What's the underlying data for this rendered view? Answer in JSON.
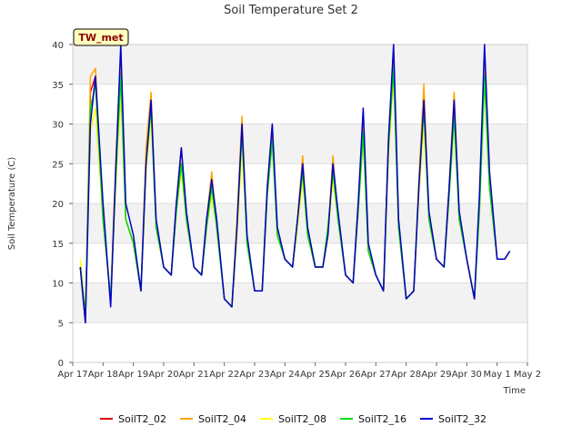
{
  "chart_data": {
    "type": "line",
    "title": "Soil Temperature Set 2",
    "xlabel": "Time",
    "ylabel": "Soil Temperature (C)",
    "xlim": [
      "Apr 17",
      "May 2"
    ],
    "ylim": [
      0,
      40
    ],
    "yticks": [
      0,
      5,
      10,
      15,
      20,
      25,
      30,
      35,
      40
    ],
    "xtick_labels": [
      "Apr 17",
      "Apr 18",
      "Apr 19",
      "Apr 20",
      "Apr 21",
      "Apr 22",
      "Apr 23",
      "Apr 24",
      "Apr 25",
      "Apr 26",
      "Apr 27",
      "Apr 28",
      "Apr 29",
      "Apr 30",
      "May 1",
      "May 2"
    ],
    "grid": "horizontal bands",
    "legend_position": "bottom",
    "annotation": "TW_met",
    "series": [
      {
        "name": "SoilT2_02",
        "color": "#dd0000",
        "x": [
          "Apr 17 06:00",
          "Apr 17 10:00",
          "Apr 17 14:00",
          "Apr 17 18:00",
          "Apr 18 00:00",
          "Apr 18 06:00",
          "Apr 18 10:00",
          "Apr 18 14:00",
          "Apr 18 18:00",
          "Apr 19 00:00",
          "Apr 19 06:00",
          "Apr 19 10:00",
          "Apr 19 14:00",
          "Apr 19 18:00",
          "Apr 20 00:00",
          "Apr 20 06:00",
          "Apr 20 10:00",
          "Apr 20 14:00",
          "Apr 20 18:00",
          "Apr 21 00:00",
          "Apr 21 06:00",
          "Apr 21 10:00",
          "Apr 21 14:00",
          "Apr 21 18:00",
          "Apr 22 00:00",
          "Apr 22 06:00",
          "Apr 22 10:00",
          "Apr 22 14:00",
          "Apr 22 18:00",
          "Apr 23 00:00",
          "Apr 23 06:00",
          "Apr 23 10:00",
          "Apr 23 14:00",
          "Apr 23 18:00",
          "Apr 24 00:00",
          "Apr 24 06:00",
          "Apr 24 10:00",
          "Apr 24 14:00",
          "Apr 24 18:00",
          "Apr 25 00:00",
          "Apr 25 06:00",
          "Apr 25 10:00",
          "Apr 25 14:00",
          "Apr 25 18:00",
          "Apr 26 00:00",
          "Apr 26 06:00",
          "Apr 26 10:00",
          "Apr 26 14:00",
          "Apr 26 18:00",
          "Apr 27 00:00",
          "Apr 27 06:00",
          "Apr 27 10:00",
          "Apr 27 14:00",
          "Apr 27 18:00",
          "Apr 28 00:00",
          "Apr 28 06:00",
          "Apr 28 10:00",
          "Apr 28 14:00",
          "Apr 28 18:00",
          "Apr 29 00:00",
          "Apr 29 06:00",
          "Apr 29 10:00",
          "Apr 29 14:00",
          "Apr 29 18:00",
          "Apr 30 00:00",
          "Apr 30 06:00",
          "Apr 30 10:00",
          "Apr 30 14:00",
          "Apr 30 18:00",
          "May 1 00:00",
          "May 1 06:00",
          "May 1 10:00"
        ],
        "y": [
          12,
          5,
          34,
          36,
          18,
          8,
          24,
          38,
          18,
          15,
          9,
          26,
          32,
          17,
          12,
          11,
          20,
          27,
          18,
          12,
          11,
          18,
          23,
          17,
          8,
          7,
          17,
          30,
          15,
          9,
          9,
          22,
          29,
          16,
          13,
          12,
          18,
          25,
          16,
          12,
          12,
          16,
          25,
          18,
          11,
          10,
          20,
          30,
          14,
          11,
          9,
          28,
          39,
          17,
          8,
          9,
          22,
          34,
          18,
          13,
          12,
          22,
          33,
          18,
          13,
          8,
          20,
          38,
          22,
          13,
          13,
          14
        ]
      },
      {
        "name": "SoilT2_04",
        "color": "#ffa500",
        "x": [
          "Apr 17 06:00",
          "Apr 17 10:00",
          "Apr 17 14:00",
          "Apr 17 18:00",
          "Apr 18 00:00",
          "Apr 18 06:00",
          "Apr 18 10:00",
          "Apr 18 14:00",
          "Apr 18 18:00",
          "Apr 19 00:00",
          "Apr 19 06:00",
          "Apr 19 10:00",
          "Apr 19 14:00",
          "Apr 19 18:00",
          "Apr 20 00:00",
          "Apr 20 06:00",
          "Apr 20 10:00",
          "Apr 20 14:00",
          "Apr 20 18:00",
          "Apr 21 00:00",
          "Apr 21 06:00",
          "Apr 21 10:00",
          "Apr 21 14:00",
          "Apr 21 18:00",
          "Apr 22 00:00",
          "Apr 22 06:00",
          "Apr 22 10:00",
          "Apr 22 14:00",
          "Apr 22 18:00",
          "Apr 23 00:00",
          "Apr 23 06:00",
          "Apr 23 10:00",
          "Apr 23 14:00",
          "Apr 23 18:00",
          "Apr 24 00:00",
          "Apr 24 06:00",
          "Apr 24 10:00",
          "Apr 24 14:00",
          "Apr 24 18:00",
          "Apr 25 00:00",
          "Apr 25 06:00",
          "Apr 25 10:00",
          "Apr 25 14:00",
          "Apr 25 18:00",
          "Apr 26 00:00",
          "Apr 26 06:00",
          "Apr 26 10:00",
          "Apr 26 14:00",
          "Apr 26 18:00",
          "Apr 27 00:00",
          "Apr 27 06:00",
          "Apr 27 10:00",
          "Apr 27 14:00",
          "Apr 27 18:00",
          "Apr 28 00:00",
          "Apr 28 06:00",
          "Apr 28 10:00",
          "Apr 28 14:00",
          "Apr 28 18:00",
          "Apr 29 00:00",
          "Apr 29 06:00",
          "Apr 29 10:00",
          "Apr 29 14:00",
          "Apr 29 18:00",
          "Apr 30 00:00",
          "Apr 30 06:00",
          "Apr 30 10:00",
          "Apr 30 14:00",
          "Apr 30 18:00",
          "May 1 00:00",
          "May 1 06:00",
          "May 1 10:00"
        ],
        "y": [
          12,
          5,
          36,
          37,
          18,
          8,
          25,
          39,
          18,
          15,
          9,
          27,
          34,
          17,
          12,
          11,
          20,
          27,
          18,
          12,
          11,
          18,
          24,
          17,
          8,
          7,
          18,
          31,
          15,
          9,
          9,
          22,
          30,
          16,
          13,
          12,
          18,
          26,
          16,
          12,
          12,
          16,
          26,
          18,
          11,
          10,
          20,
          31,
          14,
          11,
          9,
          28,
          39,
          17,
          8,
          9,
          23,
          35,
          18,
          13,
          12,
          22,
          34,
          18,
          13,
          8,
          20,
          38,
          22,
          13,
          13,
          14
        ]
      },
      {
        "name": "SoilT2_08",
        "color": "#ffff00",
        "x": [
          "Apr 17 06:00",
          "Apr 17 10:00",
          "Apr 17 14:00",
          "Apr 17 18:00",
          "Apr 18 00:00",
          "Apr 18 06:00",
          "Apr 18 10:00",
          "Apr 18 14:00",
          "Apr 18 18:00",
          "Apr 19 00:00",
          "Apr 19 06:00",
          "Apr 19 10:00",
          "Apr 19 14:00",
          "Apr 19 18:00",
          "Apr 20 00:00",
          "Apr 20 06:00",
          "Apr 20 10:00",
          "Apr 20 14:00",
          "Apr 20 18:00",
          "Apr 21 00:00",
          "Apr 21 06:00",
          "Apr 21 10:00",
          "Apr 21 14:00",
          "Apr 21 18:00",
          "Apr 22 00:00",
          "Apr 22 06:00",
          "Apr 22 10:00",
          "Apr 22 14:00",
          "Apr 22 18:00",
          "Apr 23 00:00",
          "Apr 23 06:00",
          "Apr 23 10:00",
          "Apr 23 14:00",
          "Apr 23 18:00",
          "Apr 24 00:00",
          "Apr 24 06:00",
          "Apr 24 10:00",
          "Apr 24 14:00",
          "Apr 24 18:00",
          "Apr 25 00:00",
          "Apr 25 06:00",
          "Apr 25 10:00",
          "Apr 25 14:00",
          "Apr 25 18:00",
          "Apr 26 00:00",
          "Apr 26 06:00",
          "Apr 26 10:00",
          "Apr 26 14:00",
          "Apr 26 18:00",
          "Apr 27 00:00",
          "Apr 27 06:00",
          "Apr 27 10:00",
          "Apr 27 14:00",
          "Apr 27 18:00",
          "Apr 28 00:00",
          "Apr 28 06:00",
          "Apr 28 10:00",
          "Apr 28 14:00",
          "Apr 28 18:00",
          "Apr 29 00:00",
          "Apr 29 06:00",
          "Apr 29 10:00",
          "Apr 29 14:00",
          "Apr 29 18:00",
          "Apr 30 00:00",
          "Apr 30 06:00",
          "Apr 30 10:00",
          "Apr 30 14:00",
          "Apr 30 18:00",
          "May 1 00:00",
          "May 1 06:00",
          "May 1 10:00"
        ],
        "y": [
          13,
          6,
          29,
          32,
          18,
          8,
          22,
          34,
          18,
          15,
          9,
          24,
          31,
          17,
          12,
          11,
          19,
          24,
          18,
          12,
          11,
          17,
          21,
          17,
          8,
          7,
          16,
          27,
          15,
          9,
          9,
          21,
          28,
          16,
          13,
          12,
          17,
          23,
          16,
          12,
          12,
          16,
          23,
          18,
          11,
          10,
          19,
          28,
          14,
          11,
          9,
          26,
          36,
          17,
          8,
          9,
          21,
          30,
          18,
          13,
          12,
          21,
          30,
          18,
          13,
          8,
          19,
          35,
          22,
          13,
          13,
          14
        ]
      },
      {
        "name": "SoilT2_16",
        "color": "#00dd00",
        "x": [
          "Apr 17 06:00",
          "Apr 17 10:00",
          "Apr 17 14:00",
          "Apr 17 18:00",
          "Apr 18 00:00",
          "Apr 18 06:00",
          "Apr 18 10:00",
          "Apr 18 14:00",
          "Apr 18 18:00",
          "Apr 19 00:00",
          "Apr 19 06:00",
          "Apr 19 10:00",
          "Apr 19 14:00",
          "Apr 19 18:00",
          "Apr 20 00:00",
          "Apr 20 06:00",
          "Apr 20 10:00",
          "Apr 20 14:00",
          "Apr 20 18:00",
          "Apr 21 00:00",
          "Apr 21 06:00",
          "Apr 21 10:00",
          "Apr 21 14:00",
          "Apr 21 18:00",
          "Apr 22 00:00",
          "Apr 22 06:00",
          "Apr 22 10:00",
          "Apr 22 14:00",
          "Apr 22 18:00",
          "Apr 23 00:00",
          "Apr 23 06:00",
          "Apr 23 10:00",
          "Apr 23 14:00",
          "Apr 23 18:00",
          "Apr 24 00:00",
          "Apr 24 06:00",
          "Apr 24 10:00",
          "Apr 24 14:00",
          "Apr 24 18:00",
          "Apr 25 00:00",
          "Apr 25 06:00",
          "Apr 25 10:00",
          "Apr 25 14:00",
          "Apr 25 18:00",
          "Apr 26 00:00",
          "Apr 26 06:00",
          "Apr 26 10:00",
          "Apr 26 14:00",
          "Apr 26 18:00",
          "Apr 27 00:00",
          "Apr 27 06:00",
          "Apr 27 10:00",
          "Apr 27 14:00",
          "Apr 27 18:00",
          "Apr 28 00:00",
          "Apr 28 06:00",
          "Apr 28 10:00",
          "Apr 28 14:00",
          "Apr 28 18:00",
          "Apr 29 00:00",
          "Apr 29 06:00",
          "Apr 29 10:00",
          "Apr 29 14:00",
          "Apr 29 18:00",
          "Apr 30 00:00",
          "Apr 30 06:00",
          "Apr 30 10:00",
          "Apr 30 14:00",
          "Apr 30 18:00",
          "May 1 00:00",
          "May 1 06:00",
          "May 1 10:00"
        ],
        "y": [
          12,
          6,
          32,
          35,
          18,
          8,
          23,
          36,
          18,
          15,
          9,
          25,
          32,
          17,
          12,
          11,
          19,
          25,
          18,
          12,
          11,
          17,
          22,
          17,
          8,
          7,
          17,
          29,
          15,
          9,
          9,
          21,
          28,
          16,
          13,
          12,
          18,
          24,
          16,
          12,
          12,
          17,
          24,
          18,
          11,
          10,
          19,
          29,
          14,
          11,
          9,
          27,
          37,
          17,
          8,
          9,
          22,
          32,
          18,
          13,
          12,
          21,
          31,
          18,
          13,
          8,
          19,
          36,
          22,
          13,
          13,
          14
        ]
      },
      {
        "name": "SoilT2_32",
        "color": "#0000cc",
        "x": [
          "Apr 17 06:00",
          "Apr 17 10:00",
          "Apr 17 14:00",
          "Apr 17 18:00",
          "Apr 18 00:00",
          "Apr 18 06:00",
          "Apr 18 10:00",
          "Apr 18 14:00",
          "Apr 18 18:00",
          "Apr 19 00:00",
          "Apr 19 06:00",
          "Apr 19 10:00",
          "Apr 19 14:00",
          "Apr 19 18:00",
          "Apr 20 00:00",
          "Apr 20 06:00",
          "Apr 20 10:00",
          "Apr 20 14:00",
          "Apr 20 18:00",
          "Apr 21 00:00",
          "Apr 21 06:00",
          "Apr 21 10:00",
          "Apr 21 14:00",
          "Apr 21 18:00",
          "Apr 22 00:00",
          "Apr 22 06:00",
          "Apr 22 10:00",
          "Apr 22 14:00",
          "Apr 22 18:00",
          "Apr 23 00:00",
          "Apr 23 06:00",
          "Apr 23 10:00",
          "Apr 23 14:00",
          "Apr 23 18:00",
          "Apr 24 00:00",
          "Apr 24 06:00",
          "Apr 24 10:00",
          "Apr 24 14:00",
          "Apr 24 18:00",
          "Apr 25 00:00",
          "Apr 25 06:00",
          "Apr 25 10:00",
          "Apr 25 14:00",
          "Apr 25 18:00",
          "Apr 26 00:00",
          "Apr 26 06:00",
          "Apr 26 10:00",
          "Apr 26 14:00",
          "Apr 26 18:00",
          "Apr 27 00:00",
          "Apr 27 06:00",
          "Apr 27 10:00",
          "Apr 27 14:00",
          "Apr 27 18:00",
          "Apr 28 00:00",
          "Apr 28 06:00",
          "Apr 28 10:00",
          "Apr 28 14:00",
          "Apr 28 18:00",
          "Apr 29 00:00",
          "Apr 29 06:00",
          "Apr 29 10:00",
          "Apr 29 14:00",
          "Apr 29 18:00",
          "Apr 30 00:00",
          "Apr 30 06:00",
          "Apr 30 10:00",
          "Apr 30 14:00",
          "Apr 30 18:00",
          "May 1 00:00",
          "May 1 06:00",
          "May 1 10:00"
        ],
        "y": [
          12,
          5,
          30,
          36,
          20,
          7,
          24,
          40,
          20,
          16,
          9,
          25,
          33,
          18,
          12,
          11,
          20,
          27,
          19,
          12,
          11,
          18,
          23,
          18,
          8,
          7,
          17,
          30,
          16,
          9,
          9,
          22,
          30,
          17,
          13,
          12,
          18,
          25,
          17,
          12,
          12,
          16,
          25,
          19,
          11,
          10,
          20,
          32,
          15,
          11,
          9,
          28,
          40,
          18,
          8,
          9,
          22,
          33,
          19,
          13,
          12,
          22,
          33,
          19,
          13,
          8,
          21,
          40,
          24,
          13,
          13,
          14
        ]
      }
    ]
  }
}
